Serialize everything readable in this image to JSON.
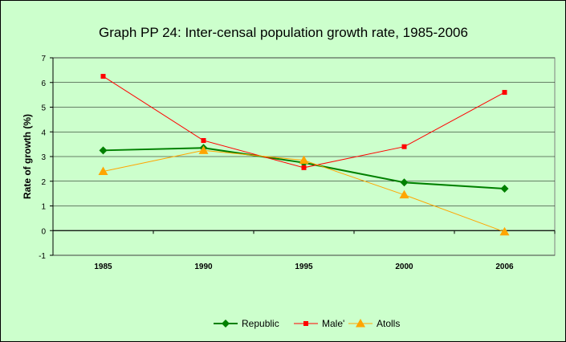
{
  "chart_data": {
    "type": "line",
    "title": "Graph PP 24: Inter-censal population growth rate, 1985-2006",
    "xlabel": "",
    "ylabel": "Rate of growth (%)",
    "categories": [
      "1985",
      "1990",
      "1995",
      "2000",
      "2006"
    ],
    "ylim": [
      -1,
      7
    ],
    "yticks": [
      -1,
      0,
      1,
      2,
      3,
      4,
      5,
      6,
      7
    ],
    "grid": true,
    "legend_position": "bottom",
    "colors": {
      "background": "#ccffcc",
      "gridline": "#000000",
      "axis": "#000000"
    },
    "series": [
      {
        "name": "Republic",
        "values": [
          3.25,
          3.35,
          2.75,
          1.95,
          1.7
        ],
        "color": "#008000",
        "marker": "diamond",
        "line_width": 2
      },
      {
        "name": "Male'",
        "values": [
          6.25,
          3.65,
          2.55,
          3.4,
          5.6
        ],
        "color": "#ff0000",
        "marker": "square",
        "line_width": 1
      },
      {
        "name": "Atolls",
        "values": [
          2.4,
          3.25,
          2.85,
          1.45,
          -0.05
        ],
        "color": "#ffa500",
        "marker": "triangle",
        "line_width": 1
      }
    ]
  }
}
